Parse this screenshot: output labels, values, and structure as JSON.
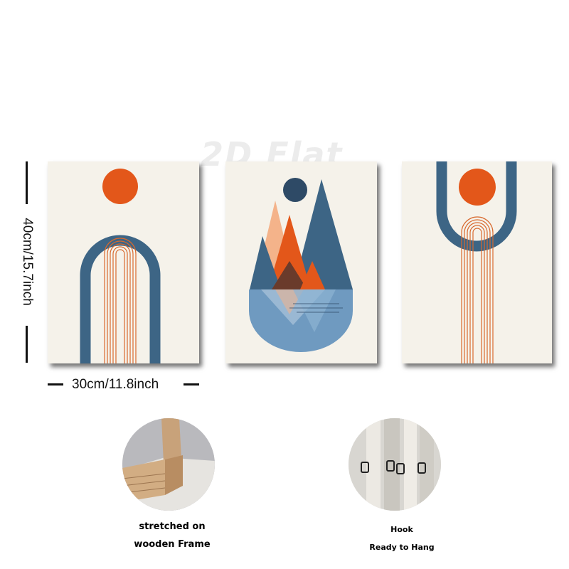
{
  "watermark": "2D Flat",
  "dimensions": {
    "height_label": "40cm/15.7inch",
    "width_label": "30cm/11.8inch"
  },
  "captions": {
    "frame_line1": "stretched on",
    "frame_line2": "wooden Frame",
    "hook_line1": "Hook",
    "hook_line2": "Ready to Hang"
  },
  "colors": {
    "background": "#ffffff",
    "canvas": "#f5f2ea",
    "blue": "#3d6585",
    "dark_blue": "#2e4a66",
    "orange": "#e3571a",
    "peach": "#f4b38a",
    "brown": "#6a3b2b",
    "wood": "#c8a27a"
  }
}
